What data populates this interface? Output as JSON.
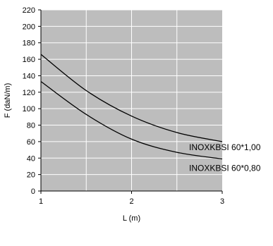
{
  "chart_data": {
    "type": "line",
    "title": "",
    "xlabel": "L (m)",
    "ylabel": "F (daN/m)",
    "xlim": [
      1,
      3
    ],
    "ylim": [
      0,
      220
    ],
    "xticks": [
      1,
      2,
      3
    ],
    "yticks": [
      0,
      20,
      40,
      60,
      80,
      100,
      120,
      140,
      160,
      180,
      200,
      220
    ],
    "grid": true,
    "colors": {
      "plot_background": "#bdbdbd",
      "grid": "#ffffff",
      "line": "#000000"
    },
    "series": [
      {
        "name": "INOXKBSI 60*1,00",
        "x": [
          1.0,
          1.5,
          2.0,
          2.5,
          3.0
        ],
        "y": [
          166,
          122,
          91,
          71,
          60
        ]
      },
      {
        "name": "INOXKBSI 60*0,80",
        "x": [
          1.0,
          1.5,
          2.0,
          2.5,
          3.0
        ],
        "y": [
          133,
          93,
          63,
          47,
          39
        ]
      }
    ]
  }
}
